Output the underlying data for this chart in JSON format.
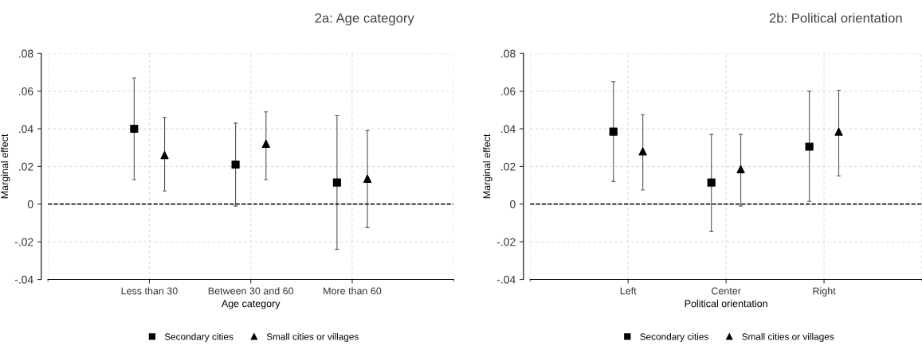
{
  "chart_data": [
    {
      "type": "scatter",
      "title": "2a: Age category",
      "xlabel": "Age category",
      "ylabel": "Marginal effect",
      "categories": [
        "Less than 30",
        "Between 30 and 60",
        "More than 60"
      ],
      "series": [
        {
          "name": "Secondary cities",
          "color": "#000000",
          "marker": "square",
          "values": [
            0.04,
            0.021,
            0.0115
          ],
          "errors": [
            [
              0.013,
              0.067
            ],
            [
              -0.001,
              0.043
            ],
            [
              -0.024,
              0.047
            ]
          ]
        },
        {
          "name": "Small cities or villages",
          "color": "#000000",
          "marker": "triangle",
          "values": [
            0.026,
            0.032,
            0.0135
          ],
          "errors": [
            [
              0.007,
              0.046
            ],
            [
              0.013,
              0.049
            ],
            [
              -0.0125,
              0.039
            ]
          ]
        }
      ],
      "ylim": [
        -0.04,
        0.08
      ],
      "yticks": [
        {
          "value": -0.04,
          "label": "-.04"
        },
        {
          "value": -0.02,
          "label": "-.02"
        },
        0,
        {
          "value": 0.02,
          "label": ".02"
        },
        {
          "value": 0.04,
          "label": ".04"
        },
        {
          "value": 0.06,
          "label": ".06"
        },
        {
          "value": 0.08,
          "label": ".08"
        }
      ],
      "ref_lines": [
        {
          "axis": "y",
          "value": 0,
          "color": "#000000",
          "line_style": "dashed"
        }
      ],
      "grid": true,
      "legend": "bottom"
    },
    {
      "type": "scatter",
      "title": "2b: Political orientation",
      "xlabel": "Political orientation",
      "ylabel": "Marginal effect",
      "categories": [
        "Left",
        "Center",
        "Right"
      ],
      "series": [
        {
          "name": "Secondary cities",
          "color": "#000000",
          "marker": "square",
          "values": [
            0.0385,
            0.0115,
            0.0305
          ],
          "errors": [
            [
              0.012,
              0.065
            ],
            [
              -0.0145,
              0.037
            ],
            [
              0.0015,
              0.06
            ]
          ]
        },
        {
          "name": "Small cities or villages",
          "color": "#000000",
          "marker": "triangle",
          "values": [
            0.028,
            0.0185,
            0.0385
          ],
          "errors": [
            [
              0.0075,
              0.0475
            ],
            [
              -0.001,
              0.037
            ],
            [
              0.015,
              0.0605
            ]
          ]
        }
      ],
      "ylim": [
        -0.04,
        0.08
      ],
      "yticks": [
        {
          "value": -0.04,
          "label": "-.04"
        },
        {
          "value": -0.02,
          "label": "-.02"
        },
        0,
        {
          "value": 0.02,
          "label": ".02"
        },
        {
          "value": 0.04,
          "label": ".04"
        },
        {
          "value": 0.06,
          "label": ".06"
        },
        {
          "value": 0.08,
          "label": ".08"
        }
      ],
      "ref_lines": [
        {
          "axis": "y",
          "value": 0,
          "color": "#000000",
          "line_style": "dashed"
        }
      ],
      "grid": true,
      "legend": "bottom"
    }
  ]
}
